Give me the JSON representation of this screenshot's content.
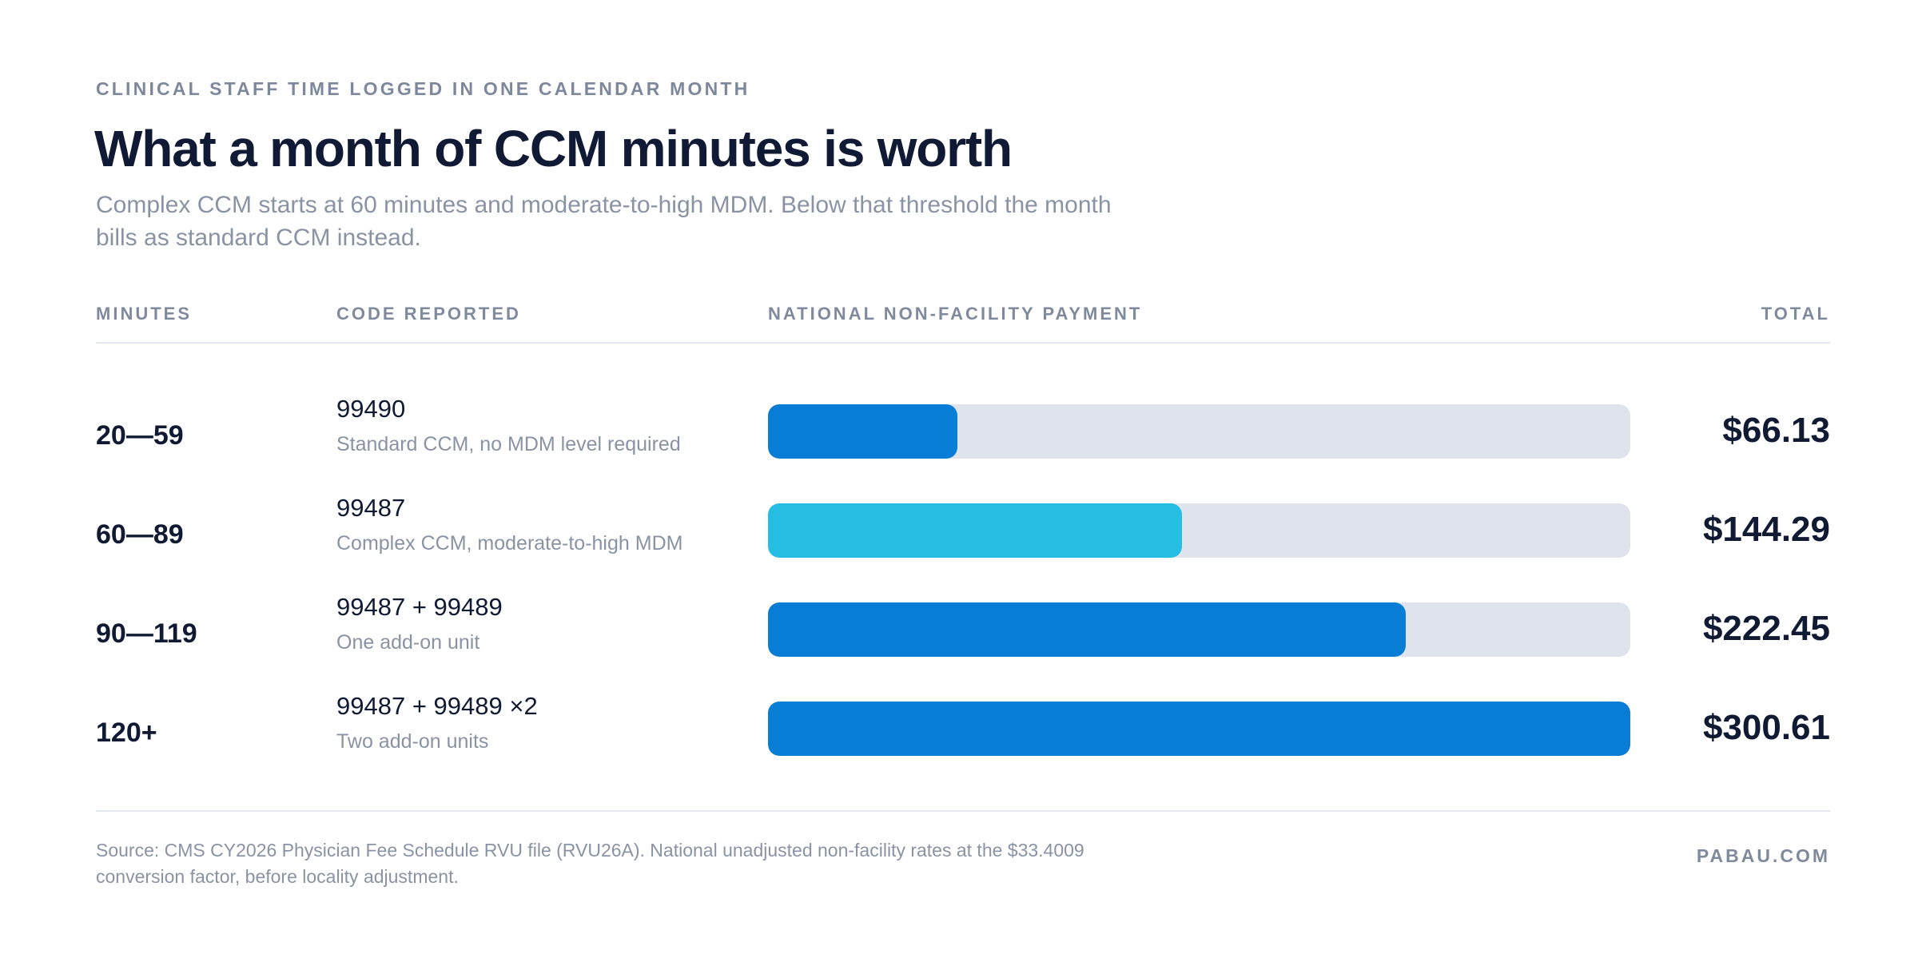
{
  "header": {
    "eyebrow": "CLINICAL STAFF TIME LOGGED IN ONE CALENDAR MONTH",
    "title": "What a month of CCM minutes is worth",
    "subtitle": "Complex CCM starts at 60 minutes and moderate-to-high MDM. Below that threshold the month bills as standard CCM instead."
  },
  "columns": {
    "minutes": "MINUTES",
    "code": "CODE REPORTED",
    "payment": "NATIONAL NON-FACILITY PAYMENT",
    "total": "TOTAL"
  },
  "colors": {
    "primary_blue": "#077dd5",
    "highlight_cyan": "#25bde2",
    "track": "#dfe3ec",
    "text": "#111a33",
    "muted": "#8a93a4"
  },
  "chart_data": {
    "type": "bar",
    "orientation": "horizontal",
    "categories": [
      "20—59",
      "60—89",
      "90—119",
      "120+"
    ],
    "codes": [
      "99490",
      "99487",
      "99487 + 99489",
      "99487 + 99489 ×2"
    ],
    "descriptions": [
      "Standard CCM, no MDM level required",
      "Complex CCM, moderate-to-high MDM",
      "One add-on unit",
      "Two add-on units"
    ],
    "values": [
      66.13,
      144.29,
      222.45,
      300.61
    ],
    "value_labels": [
      "$66.13",
      "$144.29",
      "$222.45",
      "$300.61"
    ],
    "bar_colors": [
      "#077dd5",
      "#25bde2",
      "#077dd5",
      "#077dd5"
    ],
    "xlim": [
      0,
      300.61
    ],
    "grid": false
  },
  "footer": {
    "source": "Source: CMS CY2026 Physician Fee Schedule RVU file (RVU26A). National unadjusted non-facility rates at the $33.4009 conversion factor, before locality adjustment.",
    "brand": "PABAU.COM"
  }
}
